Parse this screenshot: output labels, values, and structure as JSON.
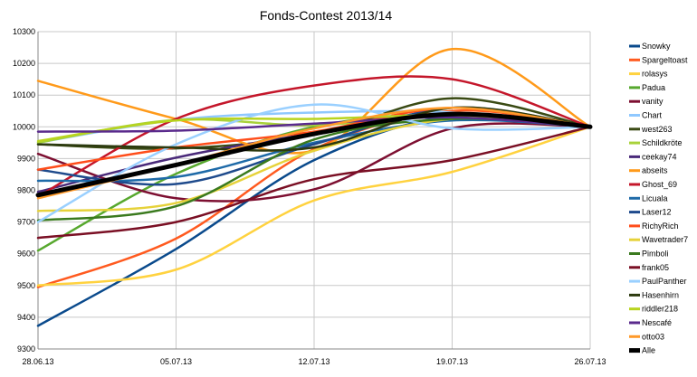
{
  "chart_data": {
    "type": "line",
    "title": "Fonds-Contest 2013/14",
    "xlabel": "",
    "ylabel": "",
    "categories": [
      "28.06.13",
      "05.07.13",
      "12.07.13",
      "19.07.13",
      "26.07.13"
    ],
    "ylim": [
      9300,
      10300
    ],
    "yticks": [
      9300,
      9400,
      9500,
      9600,
      9700,
      9800,
      9900,
      10000,
      10100,
      10200,
      10300
    ],
    "grid": true,
    "legend": "right",
    "series": [
      {
        "name": "Snowky",
        "color": "#0a4a8c",
        "width": 2.5,
        "values": [
          9373,
          9615,
          9895,
          10035,
          10000
        ]
      },
      {
        "name": "Spargeltoast",
        "color": "#ff5a1f",
        "width": 2.5,
        "values": [
          9495,
          9648,
          9930,
          10050,
          10000
        ]
      },
      {
        "name": "rolasys",
        "color": "#ffd23f",
        "width": 2.5,
        "values": [
          9500,
          9550,
          9768,
          9858,
          10000
        ]
      },
      {
        "name": "Padua",
        "color": "#57a82e",
        "width": 2.5,
        "values": [
          9610,
          9852,
          10000,
          10040,
          10000
        ]
      },
      {
        "name": "vanity",
        "color": "#7d0f31",
        "width": 2.5,
        "values": [
          9915,
          9775,
          9803,
          9995,
          10000
        ]
      },
      {
        "name": "Chart",
        "color": "#8fc8ff",
        "width": 2.5,
        "values": [
          9950,
          10022,
          10045,
          10045,
          10000
        ]
      },
      {
        "name": "west263",
        "color": "#3a4a14",
        "width": 2.5,
        "values": [
          9945,
          9932,
          9975,
          10090,
          10000
        ]
      },
      {
        "name": "Schildkröte",
        "color": "#a8d23a",
        "width": 2.5,
        "values": [
          9950,
          10022,
          10005,
          10040,
          10000
        ]
      },
      {
        "name": "ceekay74",
        "color": "#4a2a7a",
        "width": 2.5,
        "values": [
          9795,
          9903,
          9980,
          10040,
          10000
        ]
      },
      {
        "name": "abseits",
        "color": "#ff9a1a",
        "width": 2.5,
        "values": [
          10145,
          10025,
          9925,
          10245,
          10000
        ]
      },
      {
        "name": "Ghost_69",
        "color": "#c4162a",
        "width": 2.5,
        "values": [
          9780,
          10025,
          10130,
          10150,
          10000
        ]
      },
      {
        "name": "Licuala",
        "color": "#1e6aa8",
        "width": 2.5,
        "values": [
          9830,
          9842,
          9950,
          10020,
          10000
        ]
      },
      {
        "name": "Laser12",
        "color": "#1e4a8c",
        "width": 2.5,
        "values": [
          9865,
          9820,
          9945,
          10060,
          10000
        ]
      },
      {
        "name": "RichyRich",
        "color": "#ff4d1a",
        "width": 2.5,
        "values": [
          9865,
          9935,
          9985,
          10060,
          10000
        ]
      },
      {
        "name": "Wavetrader7",
        "color": "#e6d23a",
        "width": 2.5,
        "values": [
          9735,
          9760,
          9925,
          10025,
          10000
        ]
      },
      {
        "name": "Pimboli",
        "color": "#3a7a1e",
        "width": 2.5,
        "values": [
          9705,
          9750,
          9960,
          10025,
          10000
        ]
      },
      {
        "name": "frank05",
        "color": "#7a0f24",
        "width": 2.5,
        "values": [
          9650,
          9700,
          9835,
          9895,
          10000
        ]
      },
      {
        "name": "PaulPanther",
        "color": "#9ad0ff",
        "width": 2.5,
        "values": [
          9700,
          9945,
          10070,
          9995,
          10000
        ]
      },
      {
        "name": "Hasenhirn",
        "color": "#2c3a0f",
        "width": 2.5,
        "values": [
          9945,
          9935,
          9935,
          10060,
          10000
        ]
      },
      {
        "name": "riddler218",
        "color": "#b8d41e",
        "width": 2.5,
        "values": [
          9955,
          10020,
          10025,
          10035,
          10000
        ]
      },
      {
        "name": "Nescafé",
        "color": "#5a2a8c",
        "width": 2.5,
        "values": [
          9985,
          9988,
          10010,
          10030,
          10000
        ]
      },
      {
        "name": "otto03",
        "color": "#ff9a2a",
        "width": 2.5,
        "values": [
          9775,
          9880,
          9995,
          10060,
          10000
        ]
      },
      {
        "name": "Alle",
        "color": "#000000",
        "width": 5,
        "values": [
          9785,
          9880,
          9978,
          10040,
          10000
        ]
      }
    ]
  }
}
